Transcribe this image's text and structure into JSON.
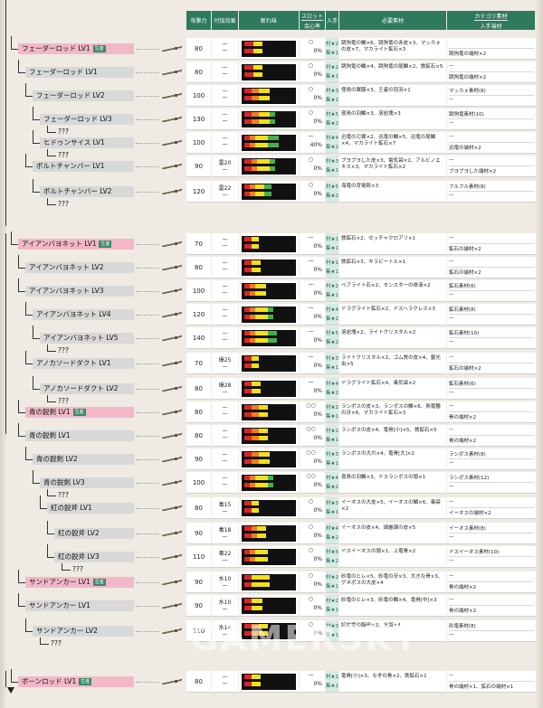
{
  "header": {
    "attack": "攻撃力",
    "effect": "付加効果",
    "sharpness": "斬れ味",
    "slot_top": "スロット",
    "slot_bottom": "会心率",
    "obtain": "入手",
    "materials": "必要素材",
    "category_top": "カテゴリ素材",
    "category_bottom": "入手端材"
  },
  "watermark": "GAMERSKY",
  "next_label": "???",
  "rows": [
    {
      "name": "フェーダーロッド LV1",
      "badge": "生産",
      "root": true,
      "attack": "80",
      "effect": "—",
      "effect2": "—",
      "slot": "○",
      "crit": "0%",
      "obtain1": "村★2",
      "obtain2": "集★1",
      "mat": "跳狗竜の鱗×6、跳狗竜の赤皮×3、マッカォの皮×7、マカライト鉱石×3",
      "cat_top": "",
      "cat_bottom": "跳狗竜の端材×2"
    },
    {
      "name": "フェーダーロッド LV1",
      "badge": "",
      "root": false,
      "attack": "80",
      "effect": "—",
      "effect2": "—",
      "slot": "○",
      "crit": "0%",
      "obtain1": "村★2",
      "obtain2": "集★1",
      "mat": "跳狗竜の鱗×4、跳狗竜の尾鱗×2、鉄鉱石×5",
      "cat_top": "—",
      "cat_bottom": "跳狗竜の端材×2"
    },
    {
      "name": "フェーダーロッド LV2",
      "badge": "",
      "root": false,
      "attack": "100",
      "effect": "—",
      "effect2": "—",
      "slot": "○",
      "crit": "0%",
      "obtain1": "村★3",
      "obtain2": "集★1",
      "mat": "怪鳥の翼膜×3、王者の冠羽×1",
      "cat_top": "マッカォ素材(8)",
      "cat_bottom": "—"
    },
    {
      "name": "フェーダーロッド LV3",
      "badge": "",
      "root": false,
      "attack": "130",
      "effect": "—",
      "effect2": "—",
      "slot": "○",
      "crit": "0%",
      "obtain1": "村★5",
      "obtain2": "集★2",
      "mat": "夜鳥の羽鱗×3、溶岩塊×3",
      "cat_top": "跳狗竜素材(10)",
      "cat_bottom": "—"
    },
    {
      "name": "ヒドゥンサイス LV1",
      "badge": "",
      "root": false,
      "attack": "100",
      "effect": "—",
      "effect2": "—",
      "slot": "—",
      "crit": "40%",
      "obtain1": "村★4",
      "obtain2": "集★2",
      "mat": "迅竜の刃翼×2、迅竜の鱗×5、迅竜の尾鱗×4、マカライト鉱石×7",
      "cat_top": "—",
      "cat_bottom": "迅竜の端材×2"
    },
    {
      "name": "ボルトチャンバー LV1",
      "badge": "",
      "root": false,
      "attack": "90",
      "effect": "雷20",
      "effect2": "—",
      "slot": "○",
      "crit": "0%",
      "obtain1": "村★3",
      "obtain2": "集★1",
      "mat": "ブヨブヨした皮×3、電気袋×2、アルビノエキス×3、マカライト鉱石×2",
      "cat_top": "—",
      "cat_bottom": "ブヨブヨした端材×2"
    },
    {
      "name": "ボルトチャンバー LV2",
      "badge": "",
      "root": false,
      "attack": "120",
      "effect": "雷22",
      "effect2": "—",
      "slot": "○",
      "crit": "0%",
      "obtain1": "村★5",
      "obtain2": "集★2",
      "mat": "海竜の背電殻×3",
      "cat_top": "フルフル素材(8)",
      "cat_bottom": "—"
    },
    {
      "name": "アイアンバヨネット LV1",
      "badge": "生産",
      "root": true,
      "attack": "70",
      "effect": "—",
      "effect2": "—",
      "slot": "—",
      "crit": "0%",
      "obtain1": "村★1",
      "obtain2": "集★1",
      "mat": "鉄鉱石×2、セッチャクロアリ×1",
      "cat_top": "—",
      "cat_bottom": "鉱石の端材×2"
    },
    {
      "name": "アイアンバヨネット LV2",
      "badge": "",
      "root": false,
      "attack": "80",
      "effect": "—",
      "effect2": "—",
      "slot": "—",
      "crit": "0%",
      "obtain1": "村★1",
      "obtain2": "集★1",
      "mat": "鉄鉱石×3、キラビートル×1",
      "cat_top": "—",
      "cat_bottom": "鉱石の端材×2"
    },
    {
      "name": "アイアンバヨネット LV3",
      "badge": "",
      "root": false,
      "attack": "100",
      "effect": "—",
      "effect2": "—",
      "slot": "—",
      "crit": "0%",
      "obtain1": "村★2",
      "obtain2": "集★1",
      "mat": "ベアライト石×2、モンスターの体液×2",
      "cat_top": "鉱石素材(6)",
      "cat_bottom": "—"
    },
    {
      "name": "アイアンバヨネット LV4",
      "badge": "",
      "root": false,
      "attack": "120",
      "effect": "—",
      "effect2": "—",
      "slot": "—",
      "crit": "0%",
      "obtain1": "村★4",
      "obtain2": "集★2",
      "mat": "ドラグライト鉱石×2、ドスヘラクレス×3",
      "cat_top": "鉱石素材(8)",
      "cat_bottom": "—"
    },
    {
      "name": "アイアンバヨネット LV5",
      "badge": "",
      "root": false,
      "attack": "140",
      "effect": "—",
      "effect2": "—",
      "slot": "—",
      "crit": "0%",
      "obtain1": "村★5",
      "obtain2": "集★2",
      "mat": "溶岩塊×2、ライトクリスタル×2",
      "cat_top": "鉱石素材(10)",
      "cat_bottom": "—"
    },
    {
      "name": "アノカソードダクト LV1",
      "badge": "",
      "root": false,
      "attack": "70",
      "effect": "爆25",
      "effect2": "—",
      "slot": "—",
      "crit": "0%",
      "obtain1": "村★3",
      "obtain2": "集★1",
      "mat": "ライトクリスタル×2、ゴム質の皮×4、霊光虫×5",
      "cat_top": "—",
      "cat_bottom": "鉱石の端材×2"
    },
    {
      "name": "アノカソードダクト LV2",
      "badge": "",
      "root": false,
      "attack": "80",
      "effect": "爆28",
      "effect2": "—",
      "slot": "—",
      "crit": "0%",
      "obtain1": "村★4",
      "obtain2": "集★2",
      "mat": "ドラグライト鉱石×4、毒気袋×2",
      "cat_top": "鉱石素材(6)",
      "cat_bottom": "—"
    },
    {
      "name": "青の鋭剣 LV1",
      "badge": "生産",
      "root": true,
      "attack": "80",
      "effect": "—",
      "effect2": "—",
      "slot": "○○",
      "crit": "0%",
      "obtain1": "村★2",
      "obtain2": "集★1",
      "mat": "ランポスの皮×3、ランポスの鱗×6、鳥竜種の牙×6、マカライト鉱石×3",
      "cat_top": "—",
      "cat_bottom": "骨の端材×2"
    },
    {
      "name": "青の鋭剣 LV1",
      "badge": "",
      "root": false,
      "attack": "80",
      "effect": "—",
      "effect2": "—",
      "slot": "○○",
      "crit": "0%",
      "obtain1": "村★2",
      "obtain2": "集★1",
      "mat": "ランポスの皮×4、竜骨[小]×5、鉄鉱石×5",
      "cat_top": "—",
      "cat_bottom": "骨の端材×2"
    },
    {
      "name": "青の鋭剣 LV2",
      "badge": "",
      "root": false,
      "attack": "90",
      "effect": "—",
      "effect2": "—",
      "slot": "○○",
      "crit": "0%",
      "obtain1": "村★3",
      "obtain2": "集★1",
      "mat": "ランポスの大爪×4、竜骨[大]×2",
      "cat_top": "ランポス素材(8)",
      "cat_bottom": "—"
    },
    {
      "name": "青の鋭剣 LV3",
      "badge": "",
      "root": false,
      "attack": "100",
      "effect": "—",
      "effect2": "—",
      "slot": "○○",
      "crit": "0%",
      "obtain1": "村★4",
      "obtain2": "集★2",
      "mat": "夜鳥の羽鱗×3、ドスランポスの頭×1",
      "cat_top": "ランポス素材(12)",
      "cat_bottom": "—"
    },
    {
      "name": "紅の鋭斧 LV1",
      "badge": "",
      "root": false,
      "attack": "80",
      "effect": "毒15",
      "effect2": "—",
      "slot": "○",
      "crit": "0%",
      "obtain1": "村★3",
      "obtain2": "集★1",
      "mat": "イーオスの大皮×5、イーオスの鱗×6、毒袋×2",
      "cat_top": "—",
      "cat_bottom": "イーオスの端材×2"
    },
    {
      "name": "紅の鋭斧 LV2",
      "badge": "",
      "root": false,
      "attack": "90",
      "effect": "毒18",
      "effect2": "—",
      "slot": "○",
      "crit": "0%",
      "obtain1": "村★4",
      "obtain2": "集★2",
      "mat": "イーオスの皮×4、綺麗疎の皮×5",
      "cat_top": "イーオス素材(8)",
      "cat_bottom": "—"
    },
    {
      "name": "紅の鋭斧 LV3",
      "badge": "",
      "root": false,
      "attack": "110",
      "effect": "毒22",
      "effect2": "—",
      "slot": "○",
      "crit": "0%",
      "obtain1": "村★5",
      "obtain2": "集★2",
      "mat": "ドスイーオスの頭×1、上竜骨×2",
      "cat_top": "ドスイーオス素材(10)",
      "cat_bottom": "—"
    },
    {
      "name": "サンドアンカー LV1",
      "badge": "生産",
      "root": true,
      "attack": "90",
      "effect": "水10",
      "effect2": "—",
      "slot": "○",
      "crit": "0%",
      "obtain1": "村★2",
      "obtain2": "集★1",
      "mat": "砂竜のヒレ×5、砂竜の牙×3、大きな骨×3、ゲネポスの大皮×4",
      "cat_top": "—",
      "cat_bottom": "骨の端材×2"
    },
    {
      "name": "サンドアンカー LV1",
      "badge": "",
      "root": false,
      "attack": "90",
      "effect": "水10",
      "effect2": "—",
      "slot": "○",
      "crit": "0%",
      "obtain1": "村★2",
      "obtain2": "集★1",
      "mat": "砂竜のヒレ×3、砂竜の鱗×4、竜骨[中]×3",
      "cat_top": "—",
      "cat_bottom": "骨の端材×2"
    },
    {
      "name": "サンドアンカー LV2",
      "badge": "",
      "root": false,
      "attack": "110",
      "effect": "水14",
      "effect2": "—",
      "slot": "○",
      "crit": "0%",
      "obtain1": "村★3",
      "obtain2": "集★1",
      "mat": "紅蛇竜の胸甲×3、水袋×4",
      "cat_top": "砂竜素材(8)",
      "cat_bottom": "—"
    },
    {
      "name": "ボーンロッド LV1",
      "badge": "生産",
      "root": true,
      "attack": "80",
      "effect": "—",
      "effect2": "—",
      "slot": "—",
      "crit": "0%",
      "obtain1": "村★1",
      "obtain2": "集★1",
      "mat": "竜骨[小]×3、なぞの骨×2、鉄鉱石×1",
      "cat_top": "—",
      "cat_bottom": "骨の端材×1、鉱石の端材×1"
    }
  ]
}
